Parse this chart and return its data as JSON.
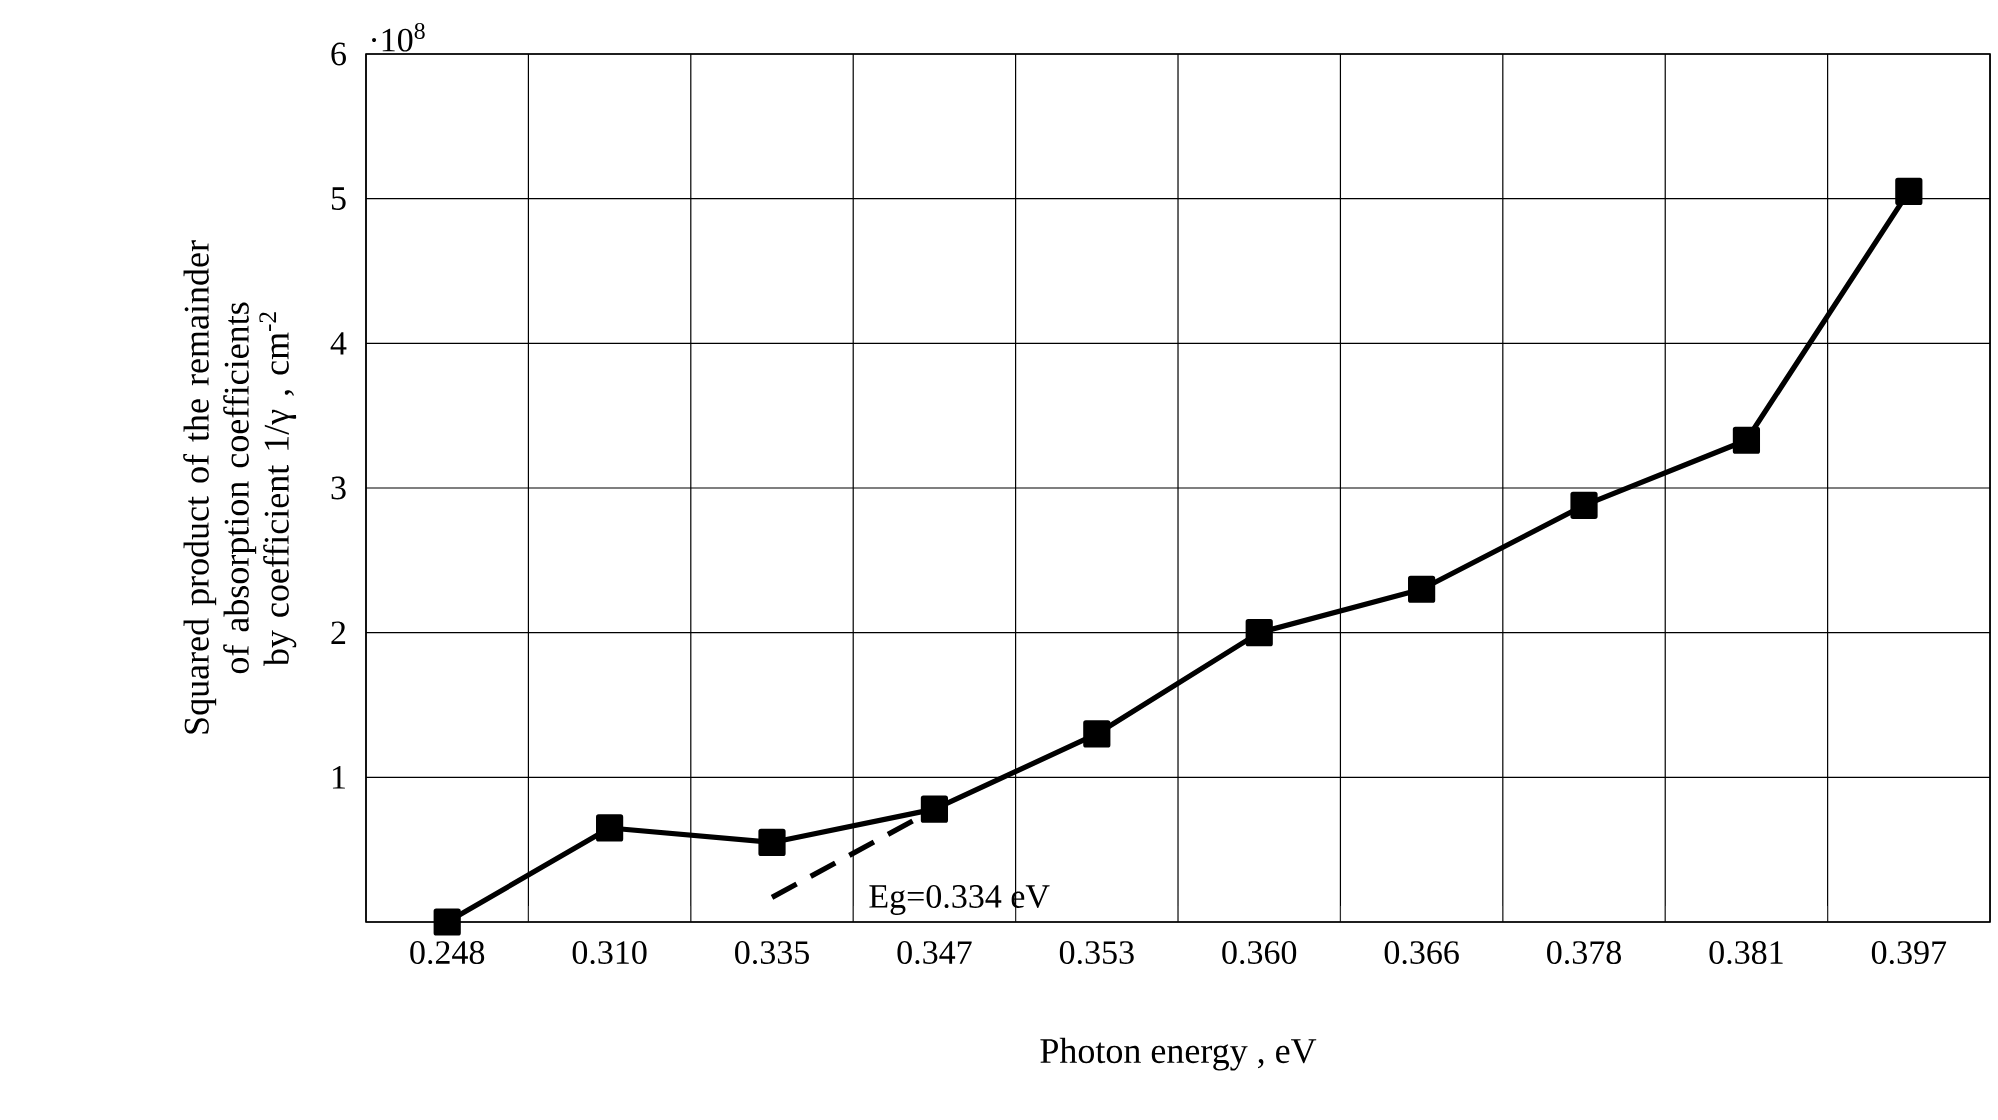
{
  "chart_data": {
    "type": "line",
    "xlabel": "Photon energy , eV",
    "ylabel": "Squared product of the remainder of absorption coefficients by coefficient 1/γ , cm$^{-2}$",
    "categories": [
      "0.248",
      "0.310",
      "0.335",
      "0.347",
      "0.353",
      "0.360",
      "0.366",
      "0.378",
      "0.381",
      "0.397"
    ],
    "series": [
      {
        "color": "#000000",
        "marker": "square",
        "line_style": "solid",
        "values": [
          0,
          0.65,
          0.55,
          0.78,
          1.3,
          2.0,
          2.3,
          2.88,
          3.33,
          5.05
        ]
      },
      {
        "color": "#000000",
        "line_style": "dashed",
        "values": [
          null,
          null,
          0.17,
          0.78,
          null,
          null,
          null,
          null,
          null,
          null
        ]
      }
    ],
    "annotations": [
      "Eg=0.334 eV",
      "·10$^{8}$"
    ],
    "ylim": [
      0,
      6
    ],
    "yticks": [
      {
        "value": 0,
        "label": null
      },
      1,
      2,
      3,
      4,
      5,
      6
    ],
    "grid": true
  }
}
